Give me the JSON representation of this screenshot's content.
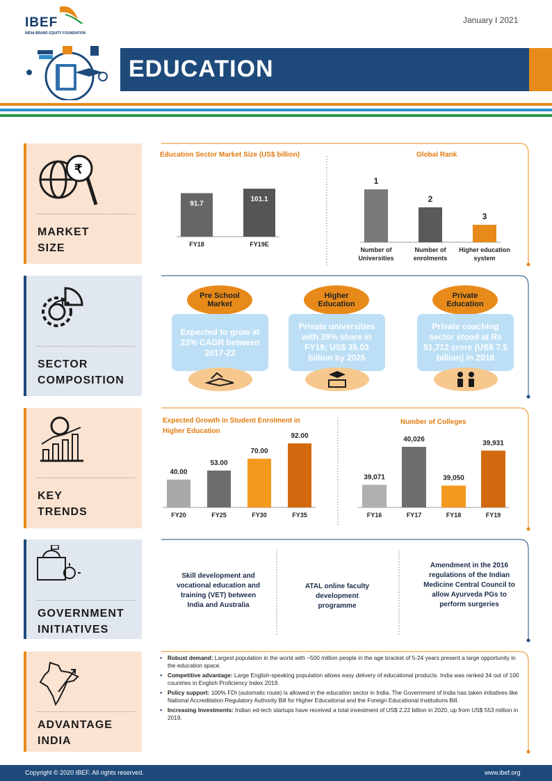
{
  "header": {
    "logo": "IBEF",
    "logo_sub": "INDIA BRAND EQUITY FOUNDATION",
    "date": "January  I  2021",
    "title": "EDUCATION"
  },
  "sections": {
    "market_size": {
      "label_line1": "MARKET",
      "label_line2": "SIZE"
    },
    "sector_composition": {
      "label_line1": "SECTOR",
      "label_line2": "COMPOSITION"
    },
    "key_trends": {
      "label_line1": "KEY",
      "label_line2": "TRENDS"
    },
    "government_initiatives": {
      "label_line1": "GOVERNMENT",
      "label_line2": "INITIATIVES"
    },
    "advantage_india": {
      "label_line1": "ADVANTAGE",
      "label_line2": "INDIA"
    }
  },
  "chart_data": [
    {
      "type": "bar",
      "title": "Education  Sector Market Size (US$ billion)",
      "categories": [
        "FY18",
        "FY19E"
      ],
      "values": [
        91.7,
        101.1
      ],
      "value_labels": [
        "91.7",
        "101.1"
      ],
      "ylim": [
        0,
        110
      ],
      "colors": [
        "#666666",
        "#555555"
      ]
    },
    {
      "type": "bar",
      "title": "Global Rank",
      "categories": [
        "Number of Universities",
        "Number of enrolments",
        "Higher education system"
      ],
      "category_lines": [
        [
          "Number of",
          "Universities"
        ],
        [
          "Number of",
          "enrolments"
        ],
        [
          "Higher education",
          "system"
        ]
      ],
      "values": [
        1,
        2,
        3
      ],
      "bar_heights_relative": [
        1.0,
        0.66,
        0.33
      ],
      "value_labels": [
        "1",
        "2",
        "3"
      ],
      "colors": [
        "#7a7a7a",
        "#5a5a5a",
        "#e88a1a"
      ]
    },
    {
      "type": "bar",
      "title": "Expected Growth in Student Enrolment  in Higher Education",
      "title_lines": [
        "Expected Growth in Student Enrolment  in",
        "Higher Education"
      ],
      "categories": [
        "FY20",
        "FY25",
        "FY30",
        "FY35"
      ],
      "values": [
        40.0,
        53.0,
        70.0,
        92.0
      ],
      "value_labels": [
        "40.00",
        "53.00",
        "70.00",
        "92.00"
      ],
      "ylim": [
        0,
        100
      ],
      "colors": [
        "#a9a9a9",
        "#6e6e6e",
        "#f39a1e",
        "#d2690f"
      ]
    },
    {
      "type": "bar",
      "title": "Number of Colleges",
      "categories": [
        "FY16",
        "FY17",
        "FY18",
        "FY19"
      ],
      "values": [
        39071,
        40026,
        39050,
        39931
      ],
      "value_labels": [
        "39,071",
        "40,026",
        "39,050",
        "39,931"
      ],
      "ylim": [
        38500,
        40200
      ],
      "colors": [
        "#b0b0b0",
        "#6e6e6e",
        "#f39a1e",
        "#d2690f"
      ]
    }
  ],
  "composition": [
    {
      "oval": "Pre School Market",
      "oval_lines": [
        "Pre School",
        "Market"
      ],
      "text": "Expected to grow at 23%  CAGR between 2017-22",
      "icon": "books-icon"
    },
    {
      "oval": "Higher Education",
      "oval_lines": [
        "Higher",
        "Education"
      ],
      "text": "Private universities with 39% share in FY19; US$ 35.03 billion by 2025",
      "icon": "graduate-icon"
    },
    {
      "oval": "Private Education",
      "oval_lines": [
        "Private",
        "Education"
      ],
      "text": "Private coaching sector stood at Rs 51,712 crore (US$ 7.5 billion) in 2018",
      "icon": "classroom-icon"
    }
  ],
  "government": [
    "Skill development and vocational education and training (VET) between India and Australia",
    "ATAL online faculty development programme",
    "Amendment in the 2016 regulations of the Indian Medicine Central Council to allow Ayurveda PGs to perform surgeries"
  ],
  "advantage": [
    {
      "bold": "Robust demand:",
      "text": " Largest population in the world with ~500 million people in the age bracket of 5-24 years present a large opportunity in the education space."
    },
    {
      "bold": "Competitive advantage:",
      "text": " Large English-speaking population allows easy delivery of educational products. India was ranked 34 out of 100 countries in English Proficiency Index 2019."
    },
    {
      "bold": "Policy support:",
      "text": " 100% FDI (automatic route) is allowed in the education sector in India. The Government of India has taken initiatives like National Accreditation Regulatory Authority Bill for Higher Educational and the Foreign Educational Institutions Bill."
    },
    {
      "bold": "Increasing Investments:",
      "text": " Indian ed-tech startups have received a total investment of US$ 2.22 billion in 2020, up from US$ 553 million in 2019."
    }
  ],
  "footer": {
    "copyright": "Copyright © 2020 IBEF. All rights reserved.",
    "website": "www.ibef.org"
  },
  "colors": {
    "navy": "#1d4a7b",
    "orange": "#e88a1a",
    "blue": "#2f8fcb",
    "green": "#2c9a47",
    "panel_orange": "#fbe3d2",
    "panel_blue": "#e1e7ef"
  }
}
